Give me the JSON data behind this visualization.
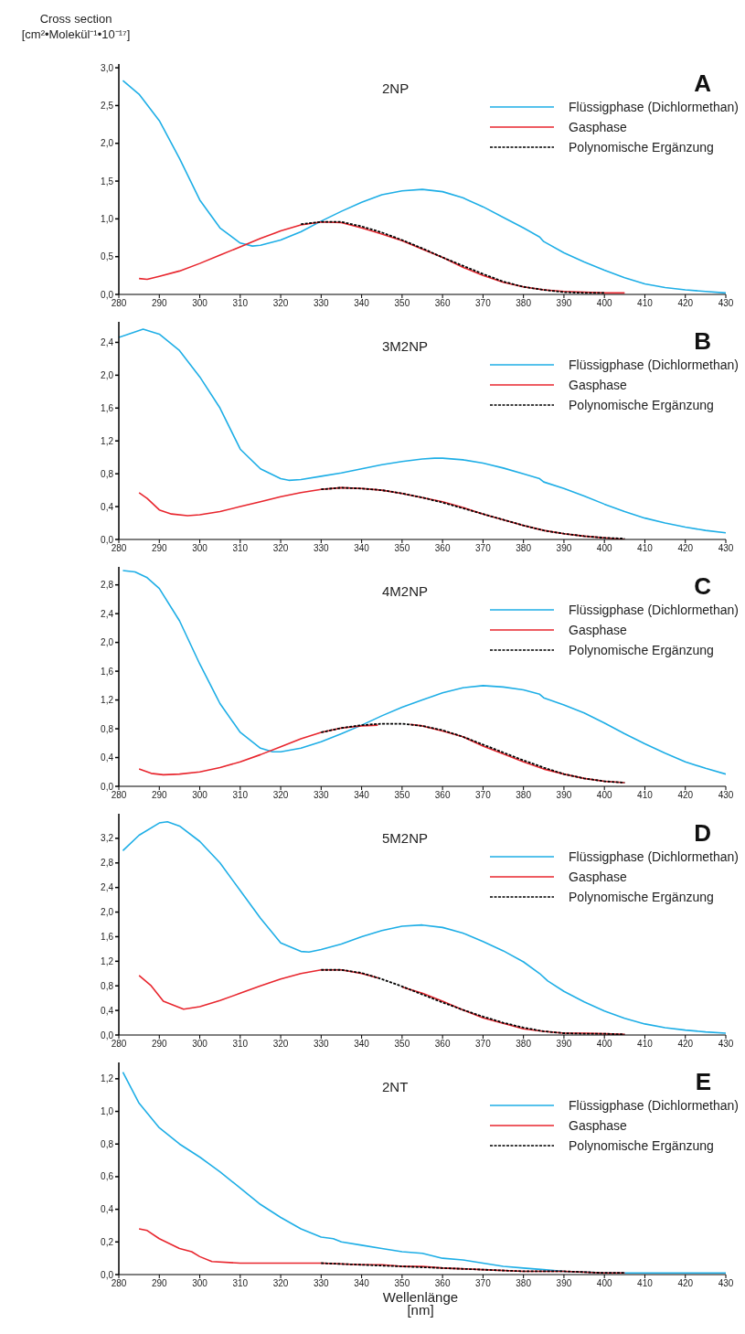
{
  "chart_data": [
    {
      "type": "line",
      "title": "2NP",
      "ylabel": "Cross section [cm²•Molekül⁻¹•10⁻¹⁷]",
      "annotations": [
        "A"
      ],
      "legend": "top right",
      "xlim": [
        280,
        430
      ],
      "xticks": [
        280,
        290,
        300,
        310,
        320,
        330,
        340,
        350,
        360,
        370,
        380,
        390,
        400,
        410,
        420,
        430
      ],
      "ylim": [
        0,
        3.05
      ],
      "yticks": [
        {
          "value": 0,
          "label": "0,0"
        },
        {
          "value": 0.5,
          "label": "0,5"
        },
        {
          "value": 1,
          "label": "1,0"
        },
        {
          "value": 1.5,
          "label": "1,5"
        },
        {
          "value": 2,
          "label": "2,0"
        },
        {
          "value": 2.5,
          "label": "2,5"
        },
        {
          "value": 3,
          "label": "3,0"
        }
      ],
      "series": [
        {
          "name": "Flüssigphase (Dichlormethan)",
          "color": "#1eaee6",
          "line_style": "solid",
          "x": [
            281,
            285,
            290,
            295,
            300,
            305,
            310,
            313,
            315,
            320,
            325,
            330,
            335,
            340,
            345,
            350,
            355,
            360,
            365,
            370,
            375,
            380,
            384,
            385,
            390,
            395,
            400,
            405,
            410,
            415,
            420,
            425,
            430
          ],
          "values": [
            2.83,
            2.65,
            2.3,
            1.8,
            1.25,
            0.88,
            0.68,
            0.64,
            0.65,
            0.72,
            0.83,
            0.97,
            1.1,
            1.22,
            1.32,
            1.37,
            1.39,
            1.36,
            1.28,
            1.16,
            1.02,
            0.88,
            0.76,
            0.7,
            0.55,
            0.43,
            0.32,
            0.22,
            0.14,
            0.09,
            0.06,
            0.04,
            0.02
          ]
        },
        {
          "name": "Gasphase",
          "color": "#e8262e",
          "line_style": "solid",
          "x": [
            285,
            287,
            290,
            295,
            300,
            305,
            310,
            315,
            320,
            325,
            330,
            335,
            340,
            345,
            350,
            355,
            360,
            365,
            370,
            375,
            380,
            385,
            390,
            395,
            400,
            405
          ],
          "values": [
            0.21,
            0.2,
            0.24,
            0.31,
            0.41,
            0.52,
            0.63,
            0.74,
            0.84,
            0.92,
            0.96,
            0.95,
            0.88,
            0.8,
            0.71,
            0.6,
            0.49,
            0.36,
            0.25,
            0.16,
            0.1,
            0.06,
            0.04,
            0.03,
            0.02,
            0.02
          ]
        },
        {
          "name": "Polynomische Ergänzung",
          "color": "#000000",
          "line_style": "dotted",
          "x": [
            325,
            330,
            335,
            340,
            345,
            350,
            355,
            360,
            365,
            370,
            375,
            380,
            385,
            390,
            395,
            400
          ],
          "values": [
            0.93,
            0.96,
            0.96,
            0.9,
            0.82,
            0.72,
            0.61,
            0.49,
            0.38,
            0.27,
            0.17,
            0.1,
            0.06,
            0.03,
            0.02,
            0.02
          ]
        }
      ]
    },
    {
      "type": "line",
      "title": "3M2NP",
      "annotations": [
        "B"
      ],
      "legend": "top right",
      "xlim": [
        280,
        430
      ],
      "xticks": [
        280,
        290,
        300,
        310,
        320,
        330,
        340,
        350,
        360,
        370,
        380,
        390,
        400,
        410,
        420,
        430
      ],
      "ylim": [
        0,
        2.65
      ],
      "yticks": [
        {
          "value": 0,
          "label": "0,0"
        },
        {
          "value": 0.4,
          "label": "0,4"
        },
        {
          "value": 0.8,
          "label": "0,8"
        },
        {
          "value": 1.2,
          "label": "1,2"
        },
        {
          "value": 1.6,
          "label": "1,6"
        },
        {
          "value": 2,
          "label": "2,0"
        },
        {
          "value": 2.4,
          "label": "2,4"
        }
      ],
      "series": [
        {
          "name": "Flüssigphase (Dichlormethan)",
          "color": "#1eaee6",
          "line_style": "solid",
          "x": [
            280,
            286,
            290,
            295,
            300,
            305,
            310,
            315,
            320,
            322,
            325,
            330,
            335,
            340,
            345,
            350,
            355,
            358,
            360,
            365,
            370,
            375,
            380,
            384,
            385,
            390,
            395,
            400,
            405,
            410,
            415,
            420,
            425,
            430
          ],
          "values": [
            2.46,
            2.56,
            2.5,
            2.3,
            1.98,
            1.6,
            1.1,
            0.86,
            0.74,
            0.72,
            0.73,
            0.77,
            0.81,
            0.86,
            0.91,
            0.95,
            0.98,
            0.99,
            0.99,
            0.97,
            0.93,
            0.87,
            0.8,
            0.74,
            0.7,
            0.62,
            0.53,
            0.43,
            0.34,
            0.26,
            0.2,
            0.15,
            0.11,
            0.08
          ]
        },
        {
          "name": "Gasphase",
          "color": "#e8262e",
          "line_style": "solid",
          "x": [
            285,
            287,
            290,
            293,
            297,
            300,
            305,
            310,
            315,
            320,
            325,
            330,
            335,
            340,
            345,
            350,
            355,
            360,
            365,
            370,
            375,
            380,
            385,
            390,
            395,
            400,
            405
          ],
          "values": [
            0.57,
            0.5,
            0.36,
            0.31,
            0.29,
            0.3,
            0.34,
            0.4,
            0.46,
            0.52,
            0.57,
            0.61,
            0.63,
            0.62,
            0.6,
            0.56,
            0.51,
            0.46,
            0.39,
            0.31,
            0.24,
            0.17,
            0.11,
            0.07,
            0.04,
            0.02,
            0
          ]
        },
        {
          "name": "Polynomische Ergänzung",
          "color": "#000000",
          "line_style": "dotted",
          "x": [
            330,
            335,
            340,
            345,
            350,
            355,
            360,
            365,
            370,
            375,
            380,
            385,
            390,
            395,
            400,
            405
          ],
          "values": [
            0.61,
            0.63,
            0.62,
            0.6,
            0.56,
            0.51,
            0.45,
            0.38,
            0.31,
            0.24,
            0.17,
            0.11,
            0.07,
            0.04,
            0.02,
            0.01
          ]
        }
      ]
    },
    {
      "type": "line",
      "title": "4M2NP",
      "annotations": [
        "C"
      ],
      "legend": "top right",
      "xlim": [
        280,
        430
      ],
      "xticks": [
        280,
        290,
        300,
        310,
        320,
        330,
        340,
        350,
        360,
        370,
        380,
        390,
        400,
        410,
        420,
        430
      ],
      "ylim": [
        0,
        3.05
      ],
      "yticks": [
        {
          "value": 0,
          "label": "0,0"
        },
        {
          "value": 0.4,
          "label": "0,4"
        },
        {
          "value": 0.8,
          "label": "0,8"
        },
        {
          "value": 1.2,
          "label": "1,2"
        },
        {
          "value": 1.6,
          "label": "1,6"
        },
        {
          "value": 2,
          "label": "2,0"
        },
        {
          "value": 2.4,
          "label": "2,4"
        },
        {
          "value": 2.8,
          "label": "2,8"
        }
      ],
      "series": [
        {
          "name": "Flüssigphase (Dichlormethan)",
          "color": "#1eaee6",
          "line_style": "solid",
          "x": [
            281,
            284,
            287,
            290,
            295,
            300,
            305,
            310,
            315,
            318,
            320,
            325,
            330,
            335,
            340,
            345,
            350,
            355,
            360,
            365,
            370,
            375,
            380,
            384,
            385,
            390,
            395,
            400,
            405,
            410,
            415,
            420,
            425,
            430
          ],
          "values": [
            3.0,
            2.98,
            2.9,
            2.75,
            2.3,
            1.7,
            1.15,
            0.75,
            0.53,
            0.48,
            0.48,
            0.53,
            0.62,
            0.73,
            0.85,
            0.98,
            1.1,
            1.2,
            1.3,
            1.37,
            1.4,
            1.38,
            1.34,
            1.28,
            1.23,
            1.13,
            1.02,
            0.88,
            0.73,
            0.59,
            0.46,
            0.34,
            0.25,
            0.17
          ]
        },
        {
          "name": "Gasphase",
          "color": "#e8262e",
          "line_style": "solid",
          "x": [
            285,
            288,
            291,
            295,
            300,
            305,
            310,
            315,
            320,
            325,
            330,
            335,
            340,
            344,
            348,
            352,
            355,
            360,
            365,
            370,
            375,
            380,
            385,
            390,
            395,
            400,
            405
          ],
          "values": [
            0.24,
            0.18,
            0.16,
            0.17,
            0.2,
            0.26,
            0.34,
            0.44,
            0.55,
            0.66,
            0.75,
            0.81,
            0.84,
            0.85,
            null,
            0.86,
            0.84,
            0.77,
            0.69,
            0.56,
            0.45,
            0.34,
            0.24,
            0.17,
            0.11,
            0.07,
            0.05
          ]
        },
        {
          "name": "Polynomische Ergänzung",
          "color": "#000000",
          "line_style": "dotted",
          "x": [
            330,
            335,
            340,
            345,
            350,
            355,
            360,
            365,
            370,
            375,
            380,
            385,
            390,
            395,
            400,
            405
          ],
          "values": [
            0.75,
            0.81,
            0.85,
            0.87,
            0.87,
            0.84,
            0.78,
            0.69,
            0.58,
            0.47,
            0.36,
            0.26,
            0.17,
            0.11,
            0.07,
            0.05
          ]
        }
      ]
    },
    {
      "type": "line",
      "title": "5M2NP",
      "annotations": [
        "D"
      ],
      "legend": "top right",
      "xlim": [
        280,
        430
      ],
      "xticks": [
        280,
        290,
        300,
        310,
        320,
        330,
        340,
        350,
        360,
        370,
        380,
        390,
        400,
        410,
        420,
        430
      ],
      "ylim": [
        0,
        3.6
      ],
      "yticks": [
        {
          "value": 0,
          "label": "0,0"
        },
        {
          "value": 0.4,
          "label": "0,4"
        },
        {
          "value": 0.8,
          "label": "0,8"
        },
        {
          "value": 1.2,
          "label": "1,2"
        },
        {
          "value": 1.6,
          "label": "1,6"
        },
        {
          "value": 2,
          "label": "2,0"
        },
        {
          "value": 2.4,
          "label": "2,4"
        },
        {
          "value": 2.8,
          "label": "2,8"
        },
        {
          "value": 3.2,
          "label": "3,2"
        }
      ],
      "series": [
        {
          "name": "Flüssigphase (Dichlormethan)",
          "color": "#1eaee6",
          "line_style": "solid",
          "x": [
            281,
            285,
            290,
            292,
            295,
            300,
            305,
            310,
            315,
            320,
            325,
            327,
            330,
            335,
            340,
            345,
            350,
            355,
            360,
            365,
            370,
            375,
            380,
            384,
            386,
            390,
            395,
            400,
            405,
            410,
            415,
            420,
            425,
            430
          ],
          "values": [
            3.0,
            3.25,
            3.45,
            3.47,
            3.4,
            3.15,
            2.8,
            2.35,
            1.9,
            1.5,
            1.36,
            1.35,
            1.39,
            1.48,
            1.6,
            1.7,
            1.77,
            1.79,
            1.75,
            1.66,
            1.52,
            1.37,
            1.19,
            1.0,
            0.88,
            0.71,
            0.54,
            0.39,
            0.27,
            0.18,
            0.12,
            0.08,
            0.05,
            0.03
          ]
        },
        {
          "name": "Gasphase",
          "color": "#e8262e",
          "line_style": "solid",
          "x": [
            285,
            288,
            291,
            296,
            300,
            305,
            310,
            315,
            320,
            325,
            330,
            335,
            340,
            344,
            348,
            350,
            355,
            360,
            365,
            370,
            375,
            380,
            385,
            390,
            395,
            400,
            405
          ],
          "values": [
            0.97,
            0.8,
            0.55,
            0.42,
            0.46,
            0.56,
            0.68,
            0.8,
            0.91,
            1.0,
            1.06,
            1.06,
            1.0,
            0.93,
            null,
            0.78,
            0.68,
            0.55,
            0.41,
            0.28,
            0.19,
            0.1,
            0.06,
            0.03,
            0.03,
            0.02,
            0.01
          ]
        },
        {
          "name": "Polynomische Ergänzung",
          "color": "#000000",
          "line_style": "dotted",
          "x": [
            330,
            335,
            340,
            345,
            350,
            355,
            360,
            365,
            370,
            375,
            380,
            385,
            390,
            395,
            400,
            405
          ],
          "values": [
            1.06,
            1.06,
            1.01,
            0.91,
            0.79,
            0.66,
            0.53,
            0.41,
            0.3,
            0.2,
            0.12,
            0.06,
            0.03,
            0.02,
            0.02,
            0.01
          ]
        }
      ]
    },
    {
      "type": "line",
      "title": "2NT",
      "xlabel": "Wellenlänge [nm]",
      "annotations": [
        "E"
      ],
      "legend": "top right",
      "xlim": [
        280,
        430
      ],
      "xticks": [
        280,
        290,
        300,
        310,
        320,
        330,
        340,
        350,
        360,
        370,
        380,
        390,
        400,
        410,
        420,
        430
      ],
      "ylim": [
        0,
        1.3
      ],
      "yticks": [
        {
          "value": 0,
          "label": "0,0"
        },
        {
          "value": 0.2,
          "label": "0,2"
        },
        {
          "value": 0.4,
          "label": "0,4"
        },
        {
          "value": 0.6,
          "label": "0,6"
        },
        {
          "value": 0.8,
          "label": "0,8"
        },
        {
          "value": 1,
          "label": "1,0"
        },
        {
          "value": 1.2,
          "label": "1,2"
        }
      ],
      "series": [
        {
          "name": "Flüssigphase (Dichlormethan)",
          "color": "#1eaee6",
          "line_style": "solid",
          "x": [
            281,
            285,
            290,
            295,
            300,
            305,
            310,
            315,
            320,
            325,
            330,
            333,
            335,
            340,
            345,
            350,
            355,
            360,
            365,
            370,
            375,
            380,
            385,
            390,
            395,
            400,
            405,
            410,
            420,
            430
          ],
          "values": [
            1.24,
            1.05,
            0.9,
            0.8,
            0.72,
            0.63,
            0.53,
            0.43,
            0.35,
            0.28,
            0.23,
            0.22,
            0.2,
            0.18,
            0.16,
            0.14,
            0.13,
            0.1,
            0.09,
            0.07,
            0.05,
            0.04,
            0.03,
            0.02,
            0.015,
            0.01,
            0.01,
            0.01,
            0.01,
            0.01
          ]
        },
        {
          "name": "Gasphase",
          "color": "#e8262e",
          "line_style": "solid",
          "x": [
            285,
            287,
            290,
            295,
            298,
            300,
            303,
            310,
            320,
            330,
            340,
            345,
            350,
            355,
            360,
            370,
            380,
            390,
            400,
            405
          ],
          "values": [
            0.28,
            0.27,
            0.22,
            0.16,
            0.14,
            0.11,
            0.08,
            0.07,
            0.07,
            0.07,
            0.06,
            0.06,
            0.05,
            0.05,
            0.04,
            0.03,
            0.02,
            0.02,
            0.01,
            0.01
          ]
        },
        {
          "name": "Polynomische Ergänzung",
          "color": "#000000",
          "line_style": "dotted",
          "x": [
            330,
            340,
            350,
            360,
            370,
            380,
            390,
            400,
            405
          ],
          "values": [
            0.07,
            0.06,
            0.05,
            0.04,
            0.03,
            0.02,
            0.02,
            0.01,
            0.01
          ]
        }
      ]
    }
  ]
}
